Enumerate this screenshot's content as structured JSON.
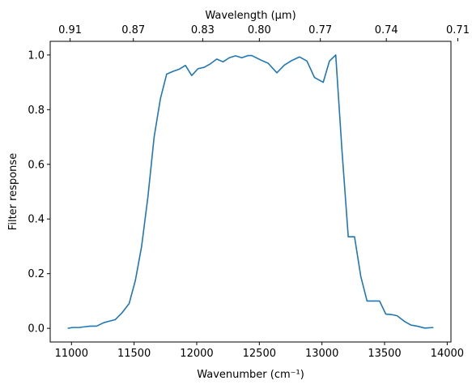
{
  "chart_data": {
    "type": "line",
    "xlabel": "Wavenumber (cm⁻¹)",
    "ylabel": "Filter response",
    "top_xlabel": "Wavelength (μm)",
    "xlim": [
      10830,
      14030
    ],
    "ylim": [
      -0.05,
      1.05
    ],
    "x_ticks": [
      11000,
      11500,
      12000,
      12500,
      13000,
      13500,
      14000
    ],
    "x_tick_labels": [
      "11000",
      "11500",
      "12000",
      "12500",
      "13000",
      "13500",
      "14000"
    ],
    "y_ticks": [
      0.0,
      0.2,
      0.4,
      0.6,
      0.8,
      1.0
    ],
    "y_tick_labels": [
      "0.0",
      "0.2",
      "0.4",
      "0.6",
      "0.8",
      "1.0"
    ],
    "top_ticks": [
      {
        "label": "0.91",
        "wavenumber": 10989
      },
      {
        "label": "0.87",
        "wavenumber": 11494
      },
      {
        "label": "0.83",
        "wavenumber": 12048
      },
      {
        "label": "0.80",
        "wavenumber": 12500
      },
      {
        "label": "0.77",
        "wavenumber": 12987
      },
      {
        "label": "0.74",
        "wavenumber": 13514
      },
      {
        "label": "0.71",
        "wavenumber": 14085
      }
    ],
    "grid": false,
    "series": [
      {
        "color": "#1f77b4",
        "x": [
          10970,
          11010,
          11060,
          11110,
          11150,
          11200,
          11260,
          11300,
          11350,
          11400,
          11460,
          11510,
          11560,
          11610,
          11660,
          11710,
          11760,
          11810,
          11860,
          11910,
          11960,
          12010,
          12060,
          12110,
          12160,
          12210,
          12260,
          12310,
          12360,
          12410,
          12440,
          12510,
          12570,
          12640,
          12700,
          12760,
          12820,
          12880,
          12940,
          13010,
          13060,
          13110,
          13160,
          13210,
          13260,
          13310,
          13360,
          13410,
          13460,
          13510,
          13560,
          13600,
          13660,
          13710,
          13760,
          13820,
          13890
        ],
        "y": [
          0.0,
          0.003,
          0.003,
          0.006,
          0.008,
          0.008,
          0.021,
          0.026,
          0.032,
          0.055,
          0.09,
          0.175,
          0.3,
          0.48,
          0.7,
          0.84,
          0.93,
          0.94,
          0.948,
          0.962,
          0.925,
          0.95,
          0.955,
          0.968,
          0.985,
          0.975,
          0.99,
          0.997,
          0.99,
          0.998,
          0.998,
          0.982,
          0.97,
          0.935,
          0.963,
          0.98,
          0.993,
          0.978,
          0.918,
          0.9,
          0.978,
          1.0,
          0.65,
          0.335,
          0.335,
          0.19,
          0.1,
          0.1,
          0.1,
          0.052,
          0.05,
          0.046,
          0.025,
          0.012,
          0.008,
          0.001,
          0.003
        ]
      }
    ]
  }
}
